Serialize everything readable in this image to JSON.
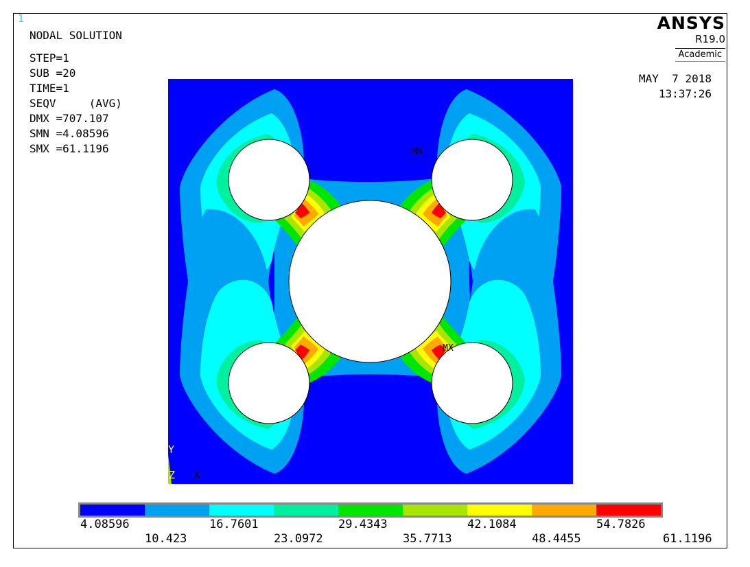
{
  "window_number": "1",
  "header": {
    "title": "NODAL SOLUTION",
    "lines": [
      "STEP=1",
      "SUB =20",
      "TIME=1",
      "SEQV     (AVG)",
      "DMX =707.107",
      "SMN =4.08596",
      "SMX =61.1196"
    ]
  },
  "brand": {
    "logo": "ANSYS",
    "version": "R19.0",
    "edition": "Academic"
  },
  "timestamp": {
    "date": "MAY  7 2018",
    "time": "13:37:26"
  },
  "markers": {
    "min": "MN",
    "max": "MX"
  },
  "axes": {
    "y": "Y",
    "z": "Z",
    "x": "X"
  },
  "legend": {
    "colors": [
      "#0000ff",
      "#00a0f2",
      "#00ffff",
      "#00f0a0",
      "#00e600",
      "#a8e600",
      "#ffff00",
      "#ffaa00",
      "#ff0000"
    ],
    "top_labels": [
      "4.08596",
      "16.7601",
      "29.4343",
      "42.1084",
      "54.7826"
    ],
    "bottom_labels": [
      "10.423",
      "23.0972",
      "35.7713",
      "48.4455",
      "61.1196"
    ]
  }
}
